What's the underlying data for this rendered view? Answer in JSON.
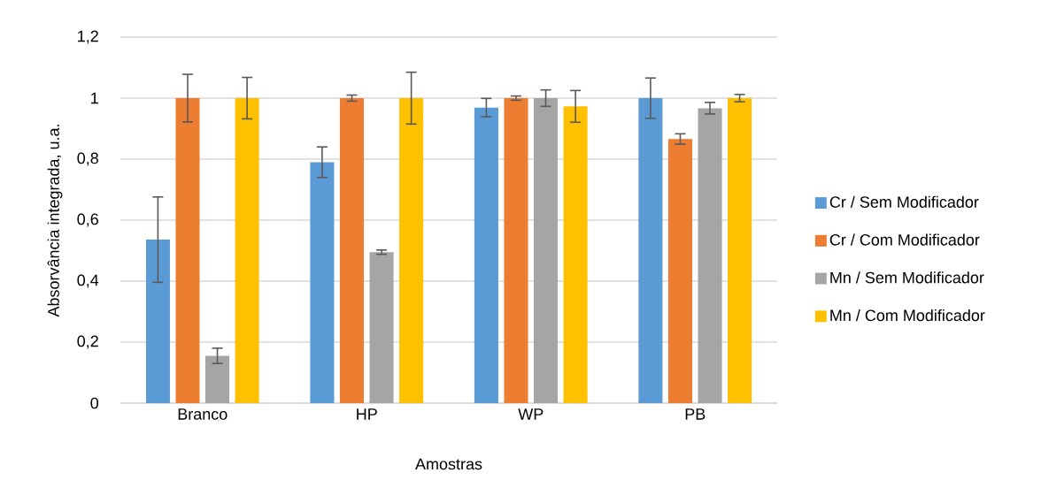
{
  "chart_data": {
    "type": "bar",
    "categories": [
      "Branco",
      "HP",
      "WP",
      "PB"
    ],
    "series": [
      {
        "name": "Cr / Sem Modificador",
        "color": "#5b9bd5",
        "values": [
          0.536,
          0.79,
          0.969,
          1
        ],
        "errors": [
          0.14,
          0.05,
          0.03,
          0.066
        ]
      },
      {
        "name": "Cr / Com Modificador",
        "color": "#ed7d31",
        "values": [
          1,
          1,
          1,
          0.866
        ],
        "errors": [
          0.078,
          0.01,
          0.007,
          0.017
        ]
      },
      {
        "name": "Mn / Sem Modificador",
        "color": "#a5a5a5",
        "values": [
          0.155,
          0.495,
          1,
          0.967
        ],
        "errors": [
          0.025,
          0.007,
          0.027,
          0.019
        ]
      },
      {
        "name": "Mn / Com Modificador",
        "color": "#ffc000",
        "values": [
          1,
          1,
          0.973,
          1
        ],
        "errors": [
          0.068,
          0.085,
          0.052,
          0.012
        ]
      }
    ],
    "xlabel": "Amostras",
    "ylabel": "Absorvância integrada, u.a.",
    "ylim": [
      0,
      1.2
    ],
    "yticks": [
      0,
      {
        "value": 0.2,
        "label": "0,2"
      },
      {
        "value": 0.4,
        "label": "0,4"
      },
      {
        "value": 0.6,
        "label": "0,6"
      },
      {
        "value": 0.8,
        "label": "0,8"
      },
      1,
      {
        "value": 1.2,
        "label": "1,2"
      }
    ],
    "grid": "y",
    "legend": "right"
  }
}
